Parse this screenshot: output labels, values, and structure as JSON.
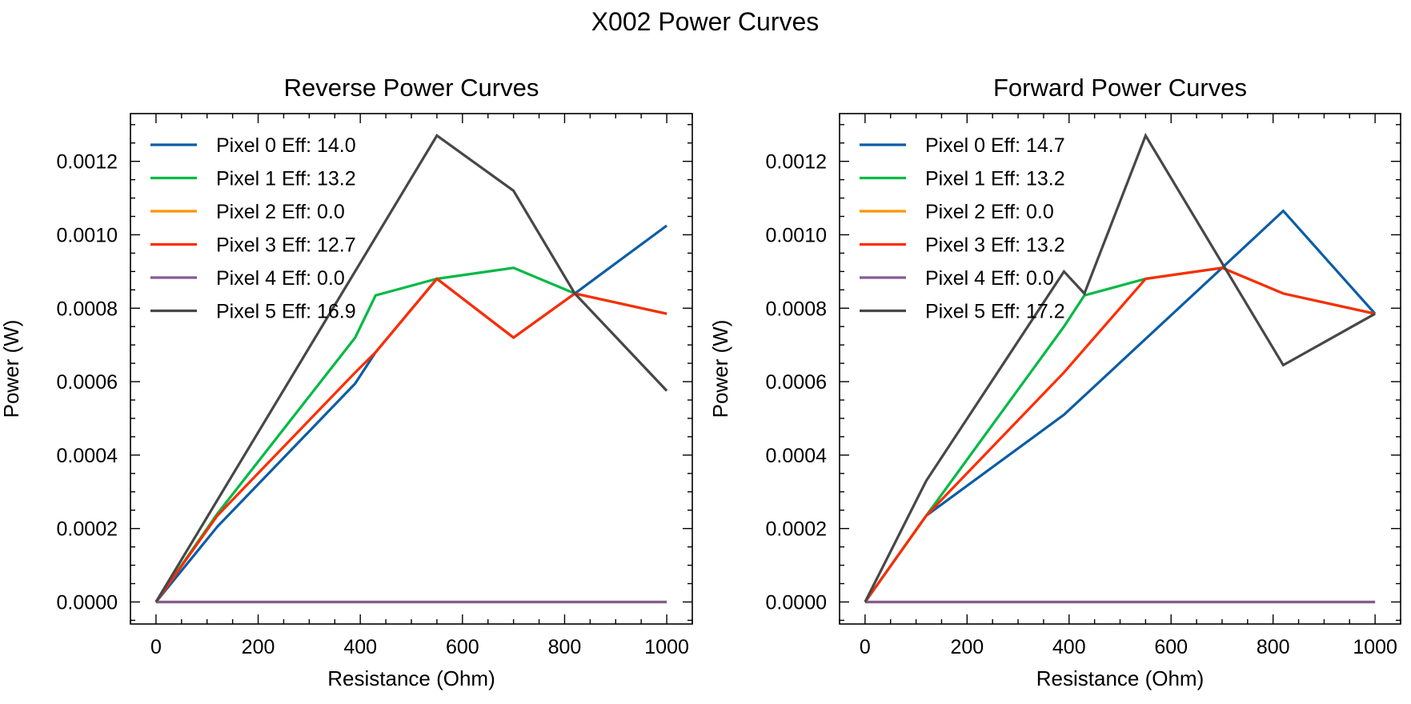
{
  "figure_title": "X002 Power Curves",
  "chart_data": [
    {
      "type": "line",
      "title": "Reverse Power Curves",
      "xlabel": "Resistance (Ohm)",
      "ylabel": "Power (W)",
      "xlim": [
        -50,
        1050
      ],
      "ylim": [
        -6e-05,
        0.00133
      ],
      "xticks": [
        0,
        200,
        400,
        600,
        800,
        1000
      ],
      "xtick_labels": [
        "0",
        "200",
        "400",
        "600",
        "800",
        "1000"
      ],
      "yticks": [
        0,
        0.0002,
        0.0004,
        0.0006,
        0.0008,
        0.001,
        0.0012
      ],
      "ytick_labels": [
        "0.0000",
        "0.0002",
        "0.0004",
        "0.0006",
        "0.0008",
        "0.0010",
        "0.0012"
      ],
      "legend_position": "upper-left",
      "series": [
        {
          "name": "Pixel 0 Eff: 14.0",
          "color": "#0c5da5",
          "x": [
            0,
            120,
            390,
            430,
            550,
            700,
            820,
            1000
          ],
          "y": [
            0,
            0.000205,
            0.000595,
            0.00068,
            0.00088,
            0.00072,
            0.00084,
            0.001025
          ]
        },
        {
          "name": "Pixel 1 Eff: 13.2",
          "color": "#00b945",
          "x": [
            0,
            120,
            390,
            430,
            550,
            700,
            820,
            1000
          ],
          "y": [
            0,
            0.00024,
            0.00072,
            0.000835,
            0.00088,
            0.00091,
            0.00084,
            0.000785
          ]
        },
        {
          "name": "Pixel 2 Eff: 0.0",
          "color": "#ff9500",
          "x": [
            0,
            1000
          ],
          "y": [
            0,
            0
          ]
        },
        {
          "name": "Pixel 3 Eff: 12.7",
          "color": "#ff2c00",
          "x": [
            0,
            120,
            390,
            430,
            550,
            700,
            820,
            1000
          ],
          "y": [
            0,
            0.000235,
            0.000625,
            0.00068,
            0.00088,
            0.00072,
            0.00084,
            0.000785
          ]
        },
        {
          "name": "Pixel 4 Eff: 0.0",
          "color": "#845b97",
          "x": [
            0,
            1000
          ],
          "y": [
            0,
            0
          ]
        },
        {
          "name": "Pixel 5 Eff: 16.9",
          "color": "#474747",
          "x": [
            0,
            550,
            700,
            820,
            1000
          ],
          "y": [
            0,
            0.00127,
            0.00112,
            0.00084,
            0.000575
          ]
        }
      ]
    },
    {
      "type": "line",
      "title": "Forward Power Curves",
      "xlabel": "Resistance (Ohm)",
      "ylabel": "Power (W)",
      "xlim": [
        -50,
        1050
      ],
      "ylim": [
        -6e-05,
        0.00133
      ],
      "xticks": [
        0,
        200,
        400,
        600,
        800,
        1000
      ],
      "xtick_labels": [
        "0",
        "200",
        "400",
        "600",
        "800",
        "1000"
      ],
      "yticks": [
        0,
        0.0002,
        0.0004,
        0.0006,
        0.0008,
        0.001,
        0.0012
      ],
      "ytick_labels": [
        "0.0000",
        "0.0002",
        "0.0004",
        "0.0006",
        "0.0008",
        "0.0010",
        "0.0012"
      ],
      "legend_position": "upper-left",
      "series": [
        {
          "name": "Pixel 0 Eff: 14.7",
          "color": "#0c5da5",
          "x": [
            0,
            120,
            390,
            700,
            820,
            1000
          ],
          "y": [
            0,
            0.000235,
            0.00051,
            0.00091,
            0.001065,
            0.000785
          ]
        },
        {
          "name": "Pixel 1 Eff: 13.2",
          "color": "#00b945",
          "x": [
            0,
            120,
            390,
            430,
            550,
            700,
            820,
            1000
          ],
          "y": [
            0,
            0.000235,
            0.00075,
            0.000835,
            0.00088,
            0.00091,
            0.00084,
            0.000785
          ]
        },
        {
          "name": "Pixel 2 Eff: 0.0",
          "color": "#ff9500",
          "x": [
            0,
            1000
          ],
          "y": [
            0,
            0
          ]
        },
        {
          "name": "Pixel 3 Eff: 13.2",
          "color": "#ff2c00",
          "x": [
            0,
            120,
            390,
            550,
            700,
            820,
            1000
          ],
          "y": [
            0,
            0.000235,
            0.000625,
            0.00088,
            0.00091,
            0.00084,
            0.000785
          ]
        },
        {
          "name": "Pixel 4 Eff: 0.0",
          "color": "#845b97",
          "x": [
            0,
            1000
          ],
          "y": [
            0,
            0
          ]
        },
        {
          "name": "Pixel 5 Eff: 17.2",
          "color": "#474747",
          "x": [
            0,
            120,
            390,
            430,
            550,
            820,
            1000
          ],
          "y": [
            0,
            0.00033,
            0.0009,
            0.00084,
            0.00127,
            0.000645,
            0.000785
          ]
        }
      ]
    }
  ]
}
